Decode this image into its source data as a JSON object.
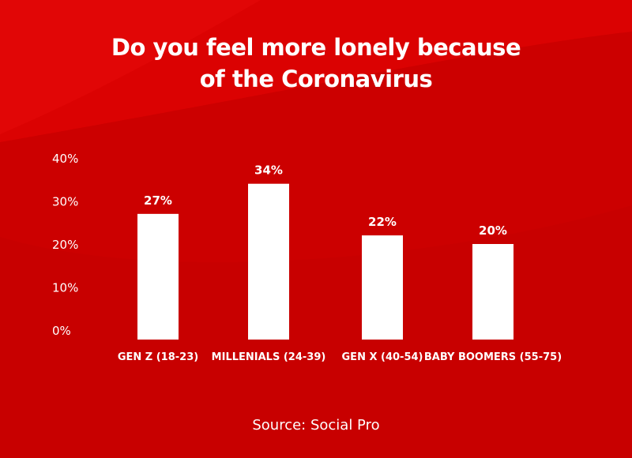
{
  "title": {
    "line1": "Do you feel more lonely because",
    "line2": "of the Coronavirus"
  },
  "source": "Source: Social Pro",
  "colors": {
    "background": "#cc0000",
    "background_light": "#e00404",
    "bar": "#ffffff",
    "text": "#ffffff"
  },
  "chart_data": {
    "type": "bar",
    "title": "Do you feel more lonely because of the Coronavirus",
    "categories": [
      "GEN Z (18-23)",
      "MILLENIALS (24-39)",
      "GEN X (40-54)",
      "BABY BOOMERS (55-75)"
    ],
    "values": [
      27,
      34,
      22,
      20
    ],
    "data_labels": [
      "27%",
      "34%",
      "22%",
      "20%"
    ],
    "ylim": [
      0,
      40
    ],
    "yticks": [
      0,
      10,
      20,
      30,
      40
    ],
    "ytick_labels": [
      "0%",
      "10%",
      "20%",
      "30%",
      "40%"
    ],
    "xlabel": "",
    "ylabel": "",
    "grid": false,
    "legend": "none"
  }
}
